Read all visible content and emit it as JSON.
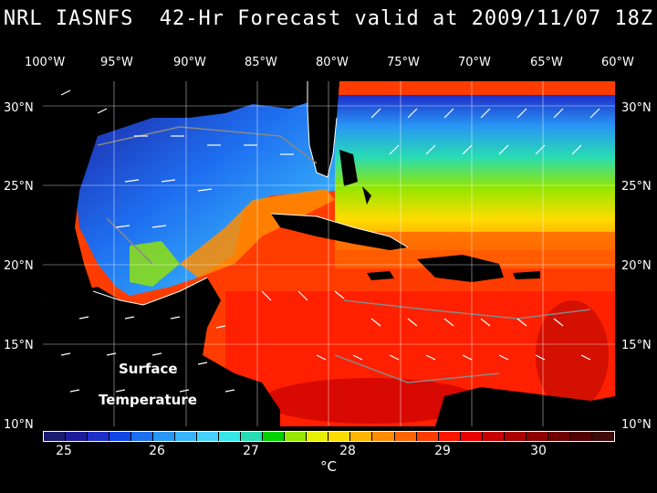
{
  "title": "NRL IASNFS  42-Hr Forecast valid at 2009/11/07 18Z",
  "lon_labels": [
    "100°W",
    "95°W",
    "90°W",
    "85°W",
    "80°W",
    "75°W",
    "70°W",
    "65°W",
    "60°W"
  ],
  "lat_labels": [
    "30°N",
    "25°N",
    "20°N",
    "15°N",
    "10°N"
  ],
  "annotation": {
    "line1": "Surface",
    "line2": "Temperature"
  },
  "colorbar": {
    "colors": [
      "#1a1a6e",
      "#1c1c9a",
      "#1e2ec8",
      "#1446e6",
      "#1e6ef0",
      "#2896f5",
      "#37b4fa",
      "#46d2fa",
      "#37e6e6",
      "#28dcb4",
      "#00d200",
      "#96e600",
      "#e6f000",
      "#ffdc00",
      "#ffb400",
      "#ff8c00",
      "#ff6400",
      "#ff3c00",
      "#ff1400",
      "#e60000",
      "#c80000",
      "#aa0000",
      "#8c0000",
      "#6e0000",
      "#500000",
      "#3c0a0a"
    ],
    "tick_labels": [
      "25",
      "26",
      "27",
      "28",
      "29",
      "30"
    ],
    "unit": "°C"
  },
  "map": {
    "variable": "sea surface temperature",
    "lon_range": [
      -100,
      -60
    ],
    "lat_range": [
      10,
      31
    ],
    "gridlines": true
  }
}
